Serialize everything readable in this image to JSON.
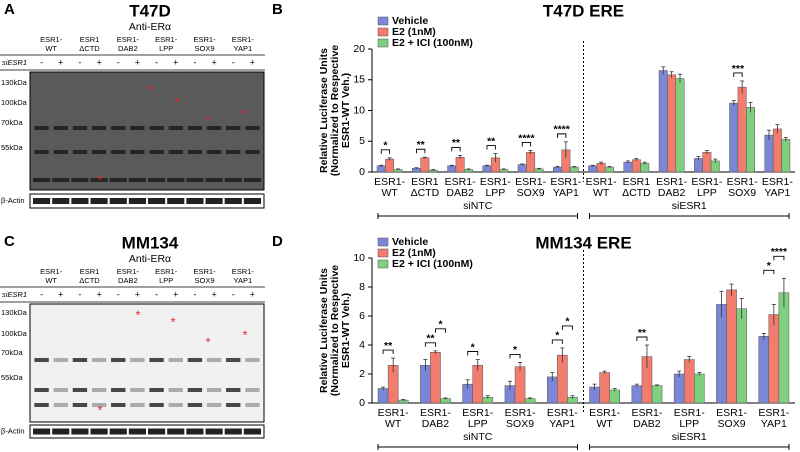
{
  "blots": [
    {
      "panel": "A",
      "title": "T47D",
      "antibody": "Anti-ERα",
      "constructs": [
        [
          "ESR1-",
          "WT"
        ],
        [
          "ESR1",
          "ΔCTD"
        ],
        [
          "ESR1-",
          "DAB2"
        ],
        [
          "ESR1-",
          "LPP"
        ],
        [
          "ESR1-",
          "SOX9"
        ],
        [
          "ESR1-",
          "YAP1"
        ]
      ],
      "si_label": "siESR1",
      "lanes": [
        "-",
        "+"
      ],
      "markers": [
        "130kDa",
        "100kDa",
        "70kDa",
        "55kDa"
      ],
      "loading": "β-Actin",
      "star": "*"
    },
    {
      "panel": "C",
      "title": "MM134",
      "antibody": "Anti-ERα",
      "constructs": [
        [
          "ESR1-",
          "WT"
        ],
        [
          "ESR1",
          "ΔCTD"
        ],
        [
          "ESR1-",
          "DAB2"
        ],
        [
          "ESR1-",
          "LPP"
        ],
        [
          "ESR1-",
          "SOX9"
        ],
        [
          "ESR1-",
          "YAP1"
        ]
      ],
      "si_label": "siESR1",
      "lanes": [
        "-",
        "+"
      ],
      "markers": [
        "130kDa",
        "100kDa",
        "70kDa",
        "55kDa"
      ],
      "loading": "β-Actin",
      "star": "*"
    }
  ],
  "chart_data": [
    {
      "type": "bar",
      "panel": "B",
      "title": "T47D ERE",
      "ylabel": [
        "Relative Luciferase Units",
        "(Normalized to Respective",
        "ESR1-WT Veh.)"
      ],
      "categories": [
        [
          "ESR1-",
          "WT"
        ],
        [
          "ESR1",
          "ΔCTD"
        ],
        [
          "ESR1-",
          "DAB2"
        ],
        [
          "ESR1-",
          "LPP"
        ],
        [
          "ESR1-",
          "SOX9"
        ],
        [
          "ESR1-",
          "YAP1"
        ],
        [
          "ESR1-",
          "WT"
        ],
        [
          "ESR1",
          "ΔCTD"
        ],
        [
          "ESR1-",
          "DAB2"
        ],
        [
          "ESR1-",
          "LPP"
        ],
        [
          "ESR1-",
          "SOX9"
        ],
        [
          "ESR1-",
          "YAP1"
        ]
      ],
      "groups": [
        "siNTC",
        "siESR1"
      ],
      "series": [
        {
          "name": "Vehicle",
          "color": "#7b86d6",
          "values": [
            1.0,
            0.6,
            1.0,
            1.0,
            1.2,
            0.8,
            1.0,
            1.6,
            16.5,
            2.2,
            11.2,
            6.0
          ],
          "errors": [
            0.1,
            0.1,
            0.1,
            0.1,
            0.1,
            0.1,
            0.1,
            0.2,
            0.6,
            0.3,
            0.4,
            0.8
          ]
        },
        {
          "name": "E2 (1nM)",
          "color": "#f27d6f",
          "values": [
            2.1,
            2.3,
            2.4,
            2.3,
            3.2,
            3.6,
            1.4,
            2.0,
            15.8,
            3.2,
            13.8,
            7.0
          ],
          "errors": [
            0.2,
            0.1,
            0.3,
            0.7,
            0.3,
            1.3,
            0.2,
            0.2,
            0.5,
            0.3,
            1.0,
            0.7
          ]
        },
        {
          "name": "E2 + ICI (100nM)",
          "color": "#7fcf7f",
          "values": [
            0.4,
            0.3,
            0.4,
            0.4,
            0.5,
            0.8,
            0.8,
            1.4,
            15.2,
            1.8,
            10.5,
            5.3
          ],
          "errors": [
            0.1,
            0.1,
            0.1,
            0.1,
            0.1,
            0.1,
            0.1,
            0.2,
            0.7,
            0.3,
            0.8,
            0.3
          ]
        }
      ],
      "significance_e2": [
        "*",
        "**",
        "**",
        "**",
        "****",
        "****",
        null,
        null,
        null,
        null,
        "***",
        null
      ],
      "ylim": [
        0,
        20
      ],
      "yticks": [
        0,
        5,
        10,
        15,
        20
      ],
      "legend": "upper left"
    },
    {
      "type": "bar",
      "panel": "D",
      "title": "MM134 ERE",
      "ylabel": [
        "Relative Luciferase Units",
        "(Normalized to Respective",
        "ESR1-WT Veh.)"
      ],
      "categories": [
        [
          "ESR1-",
          "WT"
        ],
        [
          "ESR1-",
          "DAB2"
        ],
        [
          "ESR1-",
          "LPP"
        ],
        [
          "ESR1-",
          "SOX9"
        ],
        [
          "ESR1-",
          "YAP1"
        ],
        [
          "ESR1-",
          "WT"
        ],
        [
          "ESR1-",
          "DAB2"
        ],
        [
          "ESR1-",
          "LPP"
        ],
        [
          "ESR1-",
          "SOX9"
        ],
        [
          "ESR1-",
          "YAP1"
        ]
      ],
      "groups": [
        "siNTC",
        "siESR1"
      ],
      "series": [
        {
          "name": "Vehicle",
          "color": "#7b86d6",
          "values": [
            1.0,
            2.6,
            1.3,
            1.2,
            1.8,
            1.1,
            1.2,
            2.0,
            6.8,
            4.6
          ],
          "errors": [
            0.1,
            0.4,
            0.3,
            0.3,
            0.3,
            0.2,
            0.1,
            0.2,
            0.9,
            0.2
          ]
        },
        {
          "name": "E2 (1nM)",
          "color": "#f27d6f",
          "values": [
            2.6,
            3.5,
            2.6,
            2.5,
            3.3,
            2.1,
            3.2,
            3.0,
            7.8,
            6.1
          ],
          "errors": [
            0.5,
            0.1,
            0.4,
            0.3,
            0.5,
            0.1,
            0.8,
            0.2,
            0.4,
            0.7
          ]
        },
        {
          "name": "E2 + ICI (100nM)",
          "color": "#7fcf7f",
          "values": [
            0.2,
            0.3,
            0.4,
            0.3,
            0.4,
            0.9,
            1.2,
            2.0,
            6.5,
            7.6
          ],
          "errors": [
            0.05,
            0.05,
            0.1,
            0.05,
            0.1,
            0.1,
            0.05,
            0.1,
            0.7,
            1.0
          ]
        }
      ],
      "significance_e2": [
        "**",
        "**",
        "*",
        "*",
        "*",
        null,
        "**",
        null,
        null,
        "*"
      ],
      "significance_ici": [
        null,
        "*",
        null,
        null,
        "*",
        null,
        null,
        null,
        null,
        "****"
      ],
      "ylim": [
        0,
        10
      ],
      "yticks": [
        0,
        2,
        4,
        6,
        8,
        10
      ],
      "legend": "upper left"
    }
  ]
}
